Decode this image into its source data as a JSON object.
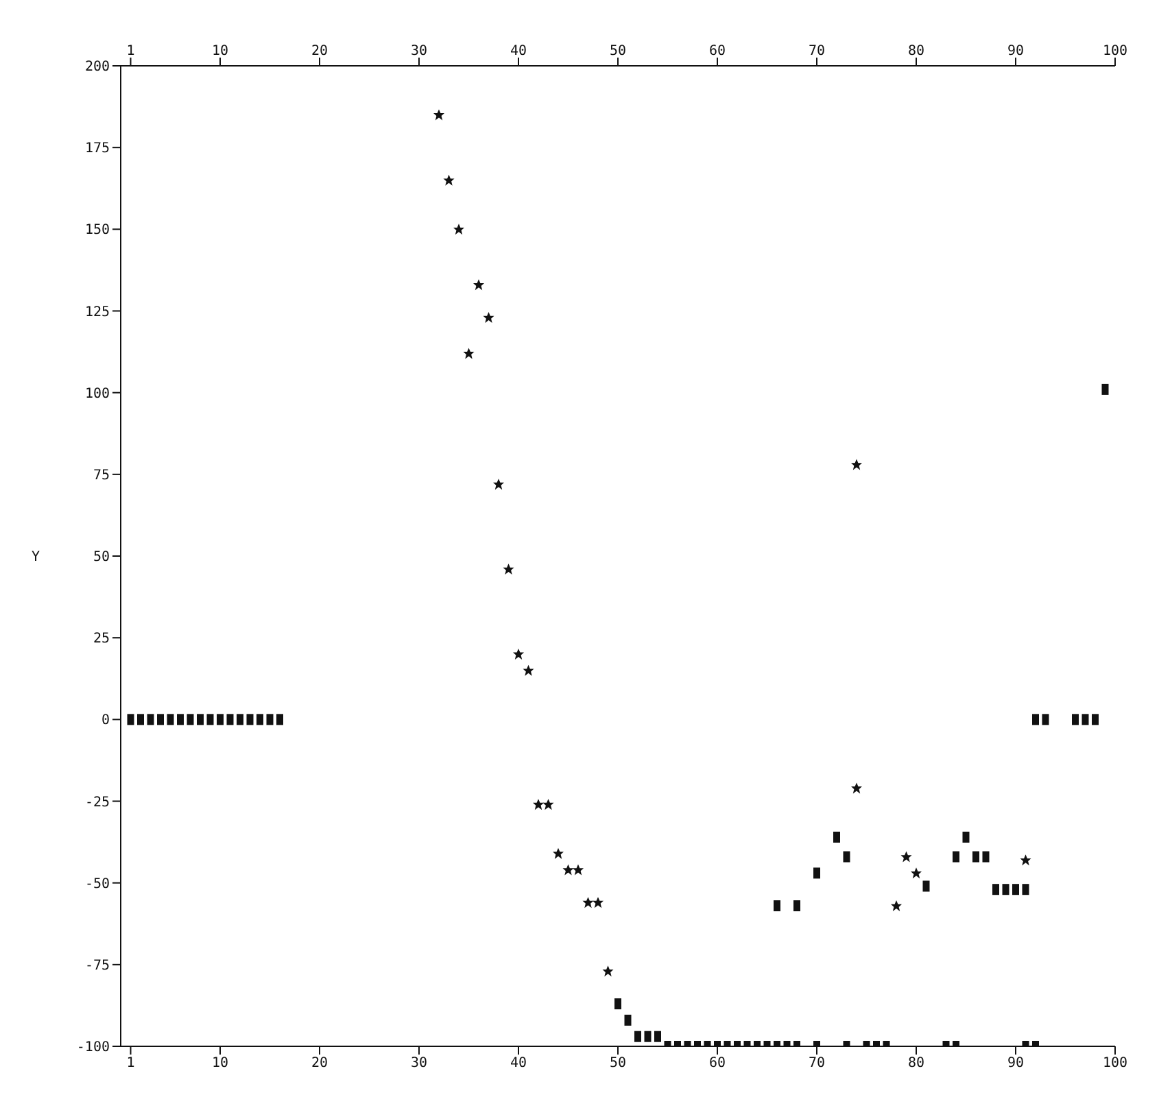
{
  "chart_data": {
    "type": "scatter",
    "ylabel": "Y",
    "xlim": [
      0,
      100
    ],
    "xticks": [
      1,
      10,
      20,
      30,
      40,
      50,
      60,
      70,
      80,
      90,
      100
    ],
    "x2lim": [
      0,
      100
    ],
    "x2ticks": [
      1,
      10,
      20,
      30,
      40,
      50,
      60,
      70,
      80,
      90,
      100
    ],
    "ylim": [
      -100,
      200
    ],
    "yticks": [
      -100,
      -75,
      -50,
      -25,
      0,
      25,
      50,
      75,
      100,
      125,
      150,
      175,
      200
    ],
    "grid": false,
    "legend": false,
    "series": [
      {
        "color": "#111111",
        "marker": "star",
        "x": [
          32,
          33,
          34,
          36,
          37,
          35,
          38,
          39,
          40,
          41,
          42,
          43,
          44,
          45,
          46,
          47,
          48,
          49,
          74,
          74,
          78,
          79,
          80,
          91
        ],
        "values": [
          185,
          165,
          150,
          133,
          123,
          112,
          72,
          46,
          20,
          15,
          -26,
          -26,
          -41,
          -46,
          -46,
          -56,
          -56,
          -77,
          78,
          -21,
          -57,
          -42,
          -47,
          -43
        ]
      },
      {
        "color": "#111111",
        "marker": "square",
        "x": [
          1,
          2,
          3,
          4,
          5,
          6,
          7,
          8,
          9,
          10,
          11,
          12,
          13,
          14,
          15,
          16,
          92,
          93,
          96,
          97,
          98,
          99,
          50,
          51,
          52,
          53,
          54,
          55,
          56,
          57,
          58,
          59,
          60,
          61,
          62,
          63,
          64,
          65,
          66,
          67,
          68,
          70,
          73,
          75,
          76,
          77,
          83,
          84,
          91,
          92,
          66,
          68,
          70,
          72,
          73,
          81,
          85,
          84,
          86,
          87,
          88,
          89,
          90,
          91
        ],
        "values": [
          0,
          0,
          0,
          0,
          0,
          0,
          0,
          0,
          0,
          0,
          0,
          0,
          0,
          0,
          0,
          0,
          0,
          0,
          0,
          0,
          0,
          101,
          -87,
          -92,
          -97,
          -97,
          -97,
          -100,
          -100,
          -100,
          -100,
          -100,
          -100,
          -100,
          -100,
          -100,
          -100,
          -100,
          -100,
          -100,
          -100,
          -100,
          -100,
          -100,
          -100,
          -100,
          -100,
          -100,
          -100,
          -100,
          -57,
          -57,
          -47,
          -36,
          -42,
          -51,
          -36,
          -42,
          -42,
          -42,
          -52,
          -52,
          -52,
          -52
        ]
      }
    ]
  }
}
